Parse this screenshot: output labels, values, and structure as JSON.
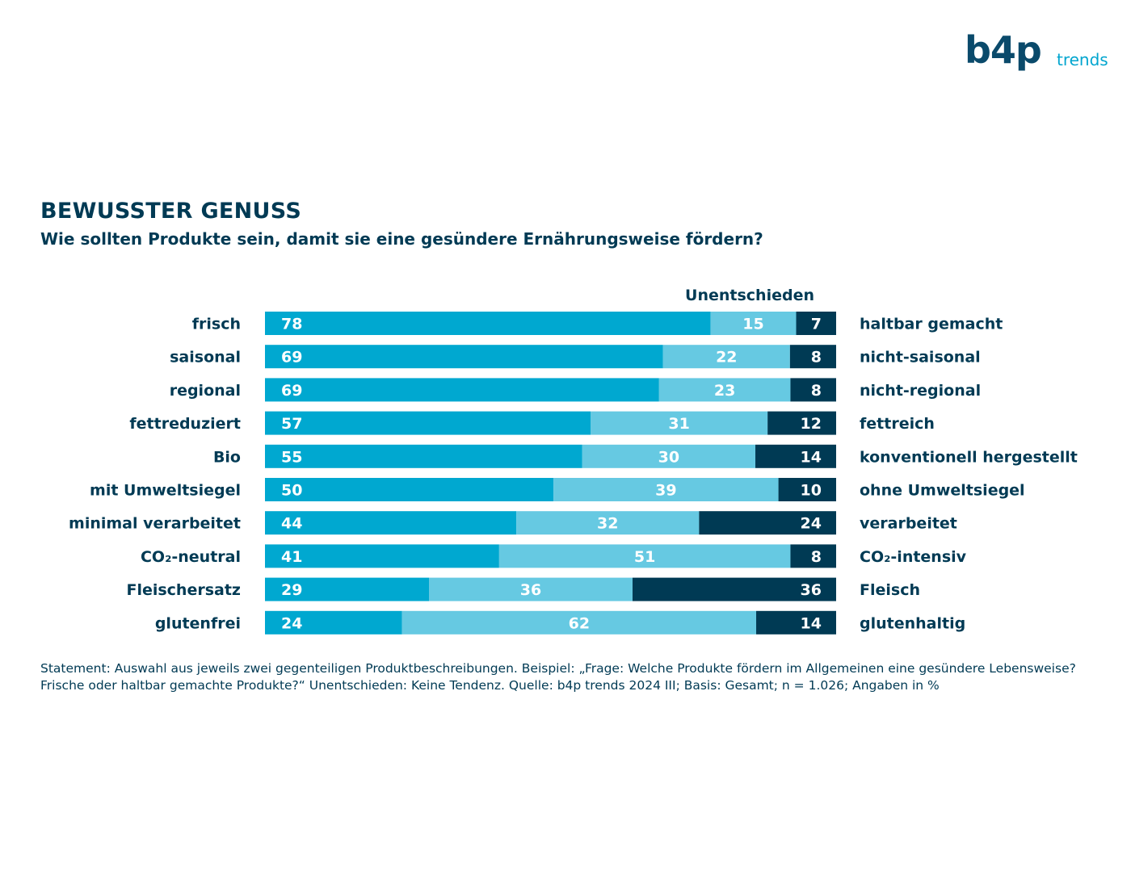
{
  "logo": {
    "brand": "b4p",
    "sub": "trends"
  },
  "header": {
    "title": "BEWUSSTER GENUSS",
    "subtitle": "Wie sollten Produkte sein, damit sie eine gesündere Ernährungsweise fördern?"
  },
  "footnote": "Statement: Auswahl aus jeweils zwei gegenteiligen Produktbeschreibungen. Beispiel: „Frage: Welche Produkte fördern im Allgemeinen eine gesündere Lebensweise? Frische oder haltbar gemachte Produkte?“ Unentschieden: Keine Tendenz. Quelle: b4p trends 2024 III; Basis: Gesamt; n = 1.026; Angaben in %",
  "colors": {
    "left": "#00a8d0",
    "middle": "#66c9e2",
    "right": "#003a54",
    "text": "#003a54"
  },
  "chart_data": {
    "type": "bar",
    "orientation": "horizontal",
    "stacked": true,
    "middle_header": "Unentschieden",
    "categories": [
      {
        "left": "frisch",
        "right": "haltbar gemacht"
      },
      {
        "left": "saisonal",
        "right": "nicht-saisonal"
      },
      {
        "left": "regional",
        "right": "nicht-regional"
      },
      {
        "left": "fettreduziert",
        "right": "fettreich"
      },
      {
        "left": "Bio",
        "right": "konventionell hergestellt"
      },
      {
        "left": "mit Umweltsiegel",
        "right": "ohne Umweltsiegel"
      },
      {
        "left": "minimal verarbeitet",
        "right": "verarbeitet"
      },
      {
        "left": "CO₂-neutral",
        "right": "CO₂-intensiv"
      },
      {
        "left": "Fleischersatz",
        "right": "Fleisch"
      },
      {
        "left": "glutenfrei",
        "right": "glutenhaltig"
      }
    ],
    "series": [
      {
        "values": [
          78,
          69,
          69,
          57,
          55,
          50,
          44,
          41,
          29,
          24
        ]
      },
      {
        "values": [
          15,
          22,
          23,
          31,
          30,
          39,
          32,
          51,
          36,
          62
        ]
      },
      {
        "values": [
          7,
          8,
          8,
          12,
          14,
          10,
          24,
          8,
          36,
          14
        ]
      }
    ]
  }
}
